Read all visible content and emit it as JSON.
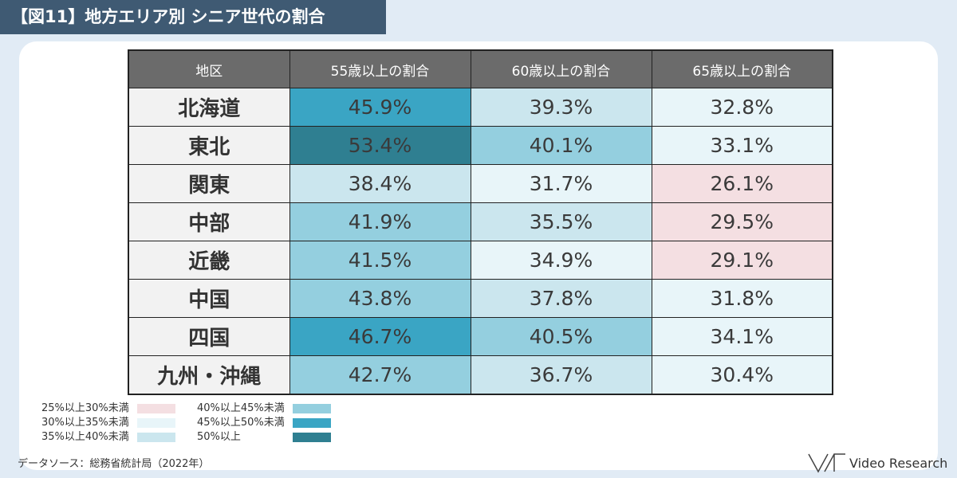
{
  "title": "【図11】地方エリア別 シニア世代の割合",
  "chart_data": {
    "type": "table",
    "columns": [
      "地区",
      "55歳以上の割合",
      "60歳以上の割合",
      "65歳以上の割合"
    ],
    "rows": [
      {
        "region": "北海道",
        "values": [
          "45.9%",
          "39.3%",
          "32.8%"
        ]
      },
      {
        "region": "東北",
        "values": [
          "53.4%",
          "40.1%",
          "33.1%"
        ]
      },
      {
        "region": "関東",
        "values": [
          "38.4%",
          "31.7%",
          "26.1%"
        ]
      },
      {
        "region": "中部",
        "values": [
          "41.9%",
          "35.5%",
          "29.5%"
        ]
      },
      {
        "region": "近畿",
        "values": [
          "41.5%",
          "34.9%",
          "29.1%"
        ]
      },
      {
        "region": "中国",
        "values": [
          "43.8%",
          "37.8%",
          "31.8%"
        ]
      },
      {
        "region": "四国",
        "values": [
          "46.7%",
          "40.5%",
          "34.1%"
        ]
      },
      {
        "region": "九州・沖縄",
        "values": [
          "42.7%",
          "36.7%",
          "30.4%"
        ]
      }
    ],
    "legend": [
      {
        "label": "25%以上30%未満",
        "min": 25,
        "max": 30,
        "color": "#f4dfe2"
      },
      {
        "label": "30%以上35%未満",
        "min": 30,
        "max": 35,
        "color": "#e8f5f9"
      },
      {
        "label": "35%以上40%未満",
        "min": 35,
        "max": 40,
        "color": "#cbe6ee"
      },
      {
        "label": "40%以上45%未満",
        "min": 40,
        "max": 45,
        "color": "#94cfdf"
      },
      {
        "label": "45%以上50%未満",
        "min": 45,
        "max": 50,
        "color": "#3aa5c4"
      },
      {
        "label": "50%以上",
        "min": 50,
        "max": 100,
        "color": "#2f7f91"
      }
    ]
  },
  "source": "データソース：総務省統計局（2022年）",
  "brand": "Video Research"
}
